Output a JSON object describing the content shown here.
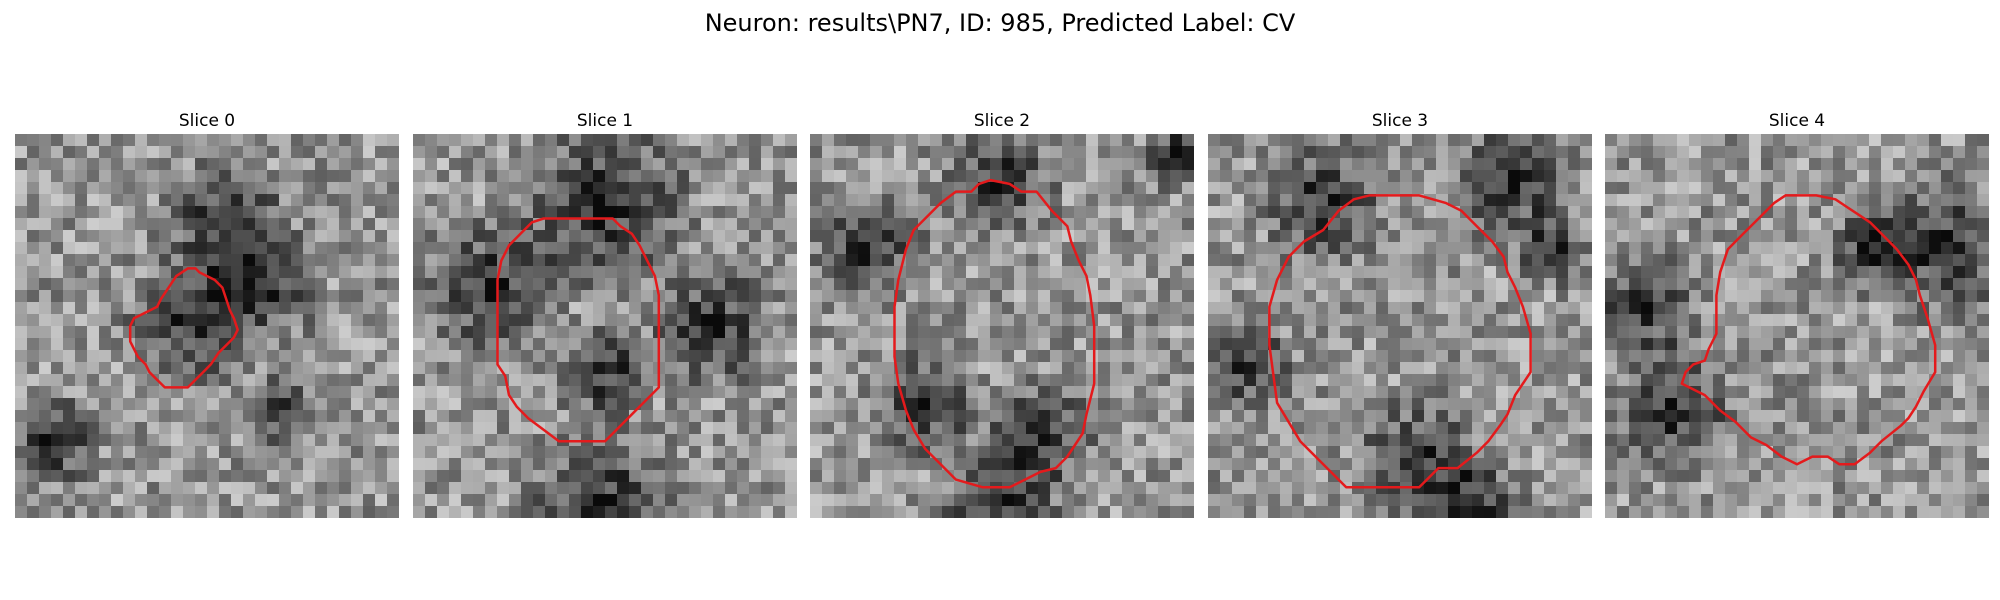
{
  "figure": {
    "title": "Neuron: results\\PN7, ID: 985, Predicted Label: CV",
    "panels": [
      {
        "title": "Slice 0",
        "seed": 11,
        "dark_spots": [
          [
            0.55,
            0.25,
            0.22
          ],
          [
            0.65,
            0.4,
            0.18
          ],
          [
            0.45,
            0.5,
            0.2
          ],
          [
            0.7,
            0.72,
            0.12
          ],
          [
            0.1,
            0.8,
            0.15
          ]
        ],
        "ring": [
          [
            0.35,
            0.46
          ],
          [
            0.37,
            0.45
          ],
          [
            0.38,
            0.43
          ],
          [
            0.4,
            0.4
          ],
          [
            0.42,
            0.37
          ],
          [
            0.45,
            0.35
          ],
          [
            0.47,
            0.35
          ],
          [
            0.48,
            0.36
          ],
          [
            0.5,
            0.37
          ],
          [
            0.52,
            0.38
          ],
          [
            0.54,
            0.4
          ],
          [
            0.55,
            0.43
          ],
          [
            0.56,
            0.46
          ],
          [
            0.57,
            0.48
          ],
          [
            0.58,
            0.51
          ],
          [
            0.57,
            0.53
          ],
          [
            0.55,
            0.55
          ],
          [
            0.53,
            0.57
          ],
          [
            0.51,
            0.6
          ],
          [
            0.49,
            0.62
          ],
          [
            0.47,
            0.64
          ],
          [
            0.45,
            0.66
          ],
          [
            0.42,
            0.66
          ],
          [
            0.39,
            0.66
          ],
          [
            0.37,
            0.64
          ],
          [
            0.35,
            0.62
          ],
          [
            0.34,
            0.6
          ],
          [
            0.32,
            0.58
          ],
          [
            0.31,
            0.56
          ],
          [
            0.3,
            0.54
          ],
          [
            0.3,
            0.5
          ],
          [
            0.31,
            0.48
          ]
        ]
      },
      {
        "title": "Slice 1",
        "seed": 23,
        "dark_spots": [
          [
            0.5,
            0.18,
            0.28
          ],
          [
            0.2,
            0.4,
            0.22
          ],
          [
            0.78,
            0.5,
            0.2
          ],
          [
            0.5,
            0.62,
            0.16
          ],
          [
            0.5,
            0.97,
            0.25
          ]
        ],
        "ring": [
          [
            0.28,
            0.26
          ],
          [
            0.31,
            0.23
          ],
          [
            0.34,
            0.22
          ],
          [
            0.38,
            0.22
          ],
          [
            0.46,
            0.22
          ],
          [
            0.52,
            0.22
          ],
          [
            0.54,
            0.24
          ],
          [
            0.57,
            0.26
          ],
          [
            0.59,
            0.29
          ],
          [
            0.61,
            0.33
          ],
          [
            0.63,
            0.37
          ],
          [
            0.64,
            0.42
          ],
          [
            0.64,
            0.55
          ],
          [
            0.64,
            0.66
          ],
          [
            0.62,
            0.68
          ],
          [
            0.59,
            0.71
          ],
          [
            0.56,
            0.74
          ],
          [
            0.53,
            0.77
          ],
          [
            0.5,
            0.8
          ],
          [
            0.44,
            0.8
          ],
          [
            0.38,
            0.8
          ],
          [
            0.34,
            0.77
          ],
          [
            0.3,
            0.74
          ],
          [
            0.27,
            0.71
          ],
          [
            0.25,
            0.68
          ],
          [
            0.24,
            0.63
          ],
          [
            0.22,
            0.6
          ],
          [
            0.22,
            0.5
          ],
          [
            0.22,
            0.38
          ],
          [
            0.23,
            0.33
          ],
          [
            0.25,
            0.29
          ]
        ]
      },
      {
        "title": "Slice 2",
        "seed": 37,
        "dark_spots": [
          [
            0.5,
            0.12,
            0.18
          ],
          [
            0.96,
            0.05,
            0.12
          ],
          [
            0.15,
            0.3,
            0.18
          ],
          [
            0.3,
            0.7,
            0.18
          ],
          [
            0.6,
            0.78,
            0.18
          ],
          [
            0.5,
            0.98,
            0.2
          ]
        ],
        "ring": [
          [
            0.3,
            0.22
          ],
          [
            0.34,
            0.18
          ],
          [
            0.38,
            0.15
          ],
          [
            0.42,
            0.15
          ],
          [
            0.44,
            0.13
          ],
          [
            0.47,
            0.12
          ],
          [
            0.52,
            0.13
          ],
          [
            0.55,
            0.15
          ],
          [
            0.59,
            0.15
          ],
          [
            0.63,
            0.2
          ],
          [
            0.67,
            0.24
          ],
          [
            0.68,
            0.28
          ],
          [
            0.7,
            0.33
          ],
          [
            0.72,
            0.37
          ],
          [
            0.73,
            0.42
          ],
          [
            0.74,
            0.5
          ],
          [
            0.74,
            0.65
          ],
          [
            0.72,
            0.73
          ],
          [
            0.71,
            0.78
          ],
          [
            0.69,
            0.81
          ],
          [
            0.67,
            0.84
          ],
          [
            0.64,
            0.87
          ],
          [
            0.6,
            0.88
          ],
          [
            0.56,
            0.9
          ],
          [
            0.52,
            0.92
          ],
          [
            0.45,
            0.92
          ],
          [
            0.38,
            0.9
          ],
          [
            0.34,
            0.86
          ],
          [
            0.3,
            0.82
          ],
          [
            0.27,
            0.77
          ],
          [
            0.25,
            0.72
          ],
          [
            0.23,
            0.65
          ],
          [
            0.22,
            0.58
          ],
          [
            0.22,
            0.45
          ],
          [
            0.23,
            0.38
          ],
          [
            0.25,
            0.3
          ],
          [
            0.27,
            0.25
          ]
        ]
      },
      {
        "title": "Slice 3",
        "seed": 53,
        "dark_spots": [
          [
            0.3,
            0.18,
            0.2
          ],
          [
            0.8,
            0.12,
            0.2
          ],
          [
            0.1,
            0.6,
            0.15
          ],
          [
            0.55,
            0.85,
            0.2
          ],
          [
            0.7,
            0.97,
            0.16
          ],
          [
            0.9,
            0.3,
            0.12
          ]
        ],
        "ring": [
          [
            0.18,
            0.38
          ],
          [
            0.21,
            0.32
          ],
          [
            0.25,
            0.28
          ],
          [
            0.3,
            0.25
          ],
          [
            0.34,
            0.2
          ],
          [
            0.38,
            0.17
          ],
          [
            0.42,
            0.16
          ],
          [
            0.55,
            0.16
          ],
          [
            0.62,
            0.18
          ],
          [
            0.66,
            0.2
          ],
          [
            0.7,
            0.24
          ],
          [
            0.74,
            0.28
          ],
          [
            0.77,
            0.32
          ],
          [
            0.78,
            0.36
          ],
          [
            0.8,
            0.4
          ],
          [
            0.82,
            0.45
          ],
          [
            0.84,
            0.52
          ],
          [
            0.84,
            0.6
          ],
          [
            0.84,
            0.62
          ],
          [
            0.82,
            0.65
          ],
          [
            0.8,
            0.68
          ],
          [
            0.78,
            0.73
          ],
          [
            0.76,
            0.76
          ],
          [
            0.73,
            0.8
          ],
          [
            0.7,
            0.83
          ],
          [
            0.65,
            0.87
          ],
          [
            0.6,
            0.87
          ],
          [
            0.57,
            0.9
          ],
          [
            0.55,
            0.92
          ],
          [
            0.44,
            0.92
          ],
          [
            0.36,
            0.92
          ],
          [
            0.3,
            0.86
          ],
          [
            0.24,
            0.8
          ],
          [
            0.18,
            0.7
          ],
          [
            0.16,
            0.55
          ],
          [
            0.16,
            0.45
          ]
        ]
      },
      {
        "title": "Slice 4",
        "seed": 71,
        "dark_spots": [
          [
            0.88,
            0.3,
            0.22
          ],
          [
            0.18,
            0.72,
            0.2
          ],
          [
            0.1,
            0.45,
            0.18
          ],
          [
            0.7,
            0.3,
            0.14
          ]
        ],
        "ring": [
          [
            0.32,
            0.3
          ],
          [
            0.36,
            0.26
          ],
          [
            0.4,
            0.22
          ],
          [
            0.44,
            0.18
          ],
          [
            0.47,
            0.16
          ],
          [
            0.55,
            0.16
          ],
          [
            0.6,
            0.17
          ],
          [
            0.63,
            0.19
          ],
          [
            0.66,
            0.21
          ],
          [
            0.69,
            0.23
          ],
          [
            0.72,
            0.26
          ],
          [
            0.76,
            0.3
          ],
          [
            0.79,
            0.34
          ],
          [
            0.81,
            0.38
          ],
          [
            0.82,
            0.42
          ],
          [
            0.84,
            0.48
          ],
          [
            0.86,
            0.55
          ],
          [
            0.86,
            0.62
          ],
          [
            0.83,
            0.67
          ],
          [
            0.81,
            0.71
          ],
          [
            0.79,
            0.74
          ],
          [
            0.77,
            0.76
          ],
          [
            0.72,
            0.8
          ],
          [
            0.69,
            0.83
          ],
          [
            0.65,
            0.86
          ],
          [
            0.61,
            0.86
          ],
          [
            0.58,
            0.84
          ],
          [
            0.54,
            0.84
          ],
          [
            0.5,
            0.86
          ],
          [
            0.46,
            0.84
          ],
          [
            0.42,
            0.81
          ],
          [
            0.38,
            0.79
          ],
          [
            0.34,
            0.75
          ],
          [
            0.3,
            0.72
          ],
          [
            0.26,
            0.68
          ],
          [
            0.2,
            0.65
          ],
          [
            0.21,
            0.62
          ],
          [
            0.23,
            0.6
          ],
          [
            0.26,
            0.59
          ],
          [
            0.27,
            0.56
          ],
          [
            0.29,
            0.52
          ],
          [
            0.29,
            0.42
          ],
          [
            0.3,
            0.36
          ]
        ]
      }
    ],
    "contour_color": "#e41a1c"
  }
}
